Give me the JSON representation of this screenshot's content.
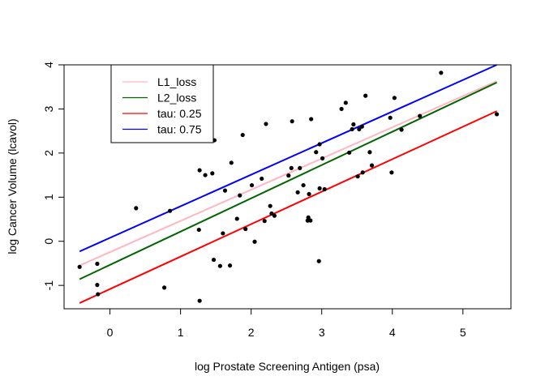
{
  "chart_data": {
    "type": "scatter",
    "title": "",
    "xlabel": "log Prostate Screening Antigen (psa)",
    "ylabel": "log Cancer Volume (lcavol)",
    "xlim": [
      -0.65,
      5.68
    ],
    "ylim": [
      -1.53,
      4.0
    ],
    "xticks": [
      0,
      1,
      2,
      3,
      4,
      5
    ],
    "yticks": [
      -1,
      0,
      1,
      2,
      3,
      4
    ],
    "xtick_labels": [
      "0",
      "1",
      "2",
      "3",
      "4",
      "5"
    ],
    "ytick_labels": [
      "-1",
      "0",
      "1",
      "2",
      "3",
      "4"
    ],
    "grid": false,
    "legend_position": "top-left",
    "points": [
      {
        "x": -0.43,
        "y": -0.58
      },
      {
        "x": -0.18,
        "y": -0.51
      },
      {
        "x": -0.18,
        "y": -0.99
      },
      {
        "x": -0.17,
        "y": -1.2
      },
      {
        "x": 0.37,
        "y": 0.75
      },
      {
        "x": 0.77,
        "y": -1.05
      },
      {
        "x": 0.85,
        "y": 0.69
      },
      {
        "x": 1.26,
        "y": 0.26
      },
      {
        "x": 1.27,
        "y": 1.61
      },
      {
        "x": 1.27,
        "y": -1.35
      },
      {
        "x": 1.35,
        "y": 1.5
      },
      {
        "x": 1.45,
        "y": 1.54
      },
      {
        "x": 1.47,
        "y": -0.42
      },
      {
        "x": 1.48,
        "y": 2.29
      },
      {
        "x": 1.56,
        "y": -0.56
      },
      {
        "x": 1.6,
        "y": 0.18
      },
      {
        "x": 1.63,
        "y": 1.15
      },
      {
        "x": 1.7,
        "y": -0.55
      },
      {
        "x": 1.72,
        "y": 1.78
      },
      {
        "x": 1.8,
        "y": 0.51
      },
      {
        "x": 1.84,
        "y": 1.04
      },
      {
        "x": 1.88,
        "y": 2.41
      },
      {
        "x": 1.92,
        "y": 0.28
      },
      {
        "x": 2.01,
        "y": 1.27
      },
      {
        "x": 2.05,
        "y": -0.01
      },
      {
        "x": 2.15,
        "y": 1.42
      },
      {
        "x": 2.19,
        "y": 0.46
      },
      {
        "x": 2.21,
        "y": 2.66
      },
      {
        "x": 2.27,
        "y": 0.8
      },
      {
        "x": 2.29,
        "y": 0.63
      },
      {
        "x": 2.33,
        "y": 0.58
      },
      {
        "x": 2.53,
        "y": 1.49
      },
      {
        "x": 2.57,
        "y": 1.66
      },
      {
        "x": 2.58,
        "y": 2.72
      },
      {
        "x": 2.66,
        "y": 1.11
      },
      {
        "x": 2.69,
        "y": 1.66
      },
      {
        "x": 2.74,
        "y": 1.27
      },
      {
        "x": 2.8,
        "y": 0.47
      },
      {
        "x": 2.81,
        "y": 0.54
      },
      {
        "x": 2.82,
        "y": 1.07
      },
      {
        "x": 2.84,
        "y": 0.47
      },
      {
        "x": 2.85,
        "y": 2.77
      },
      {
        "x": 2.92,
        "y": 2.02
      },
      {
        "x": 2.96,
        "y": -0.45
      },
      {
        "x": 2.97,
        "y": 1.2
      },
      {
        "x": 2.97,
        "y": 2.2
      },
      {
        "x": 3.01,
        "y": 1.88
      },
      {
        "x": 3.04,
        "y": 1.18
      },
      {
        "x": 3.28,
        "y": 3.0
      },
      {
        "x": 3.34,
        "y": 3.14
      },
      {
        "x": 3.39,
        "y": 2.01
      },
      {
        "x": 3.43,
        "y": 2.54
      },
      {
        "x": 3.45,
        "y": 2.65
      },
      {
        "x": 3.51,
        "y": 1.47
      },
      {
        "x": 3.53,
        "y": 2.54
      },
      {
        "x": 3.57,
        "y": 2.6
      },
      {
        "x": 3.58,
        "y": 1.56
      },
      {
        "x": 3.62,
        "y": 3.3
      },
      {
        "x": 3.68,
        "y": 2.02
      },
      {
        "x": 3.71,
        "y": 1.72
      },
      {
        "x": 3.97,
        "y": 2.8
      },
      {
        "x": 3.99,
        "y": 1.56
      },
      {
        "x": 4.03,
        "y": 3.25
      },
      {
        "x": 4.13,
        "y": 2.53
      },
      {
        "x": 4.39,
        "y": 2.84
      },
      {
        "x": 4.69,
        "y": 3.82
      },
      {
        "x": 5.48,
        "y": 2.88
      }
    ],
    "series": [
      {
        "name": "L1_loss",
        "color": "#ffb6c1",
        "x": [
          -0.43,
          5.48
        ],
        "y": [
          -0.55,
          3.63
        ]
      },
      {
        "name": "L2_loss",
        "color": "#006400",
        "x": [
          -0.43,
          5.48
        ],
        "y": [
          -0.86,
          3.6
        ]
      },
      {
        "name": "tau: 0.25",
        "color": "#ff0000",
        "x": [
          -0.43,
          5.48
        ],
        "y": [
          -1.4,
          2.95
        ]
      },
      {
        "name": "tau: 0.75",
        "color": "#0000ff",
        "x": [
          -0.43,
          5.48
        ],
        "y": [
          -0.23,
          4.0
        ]
      }
    ]
  }
}
